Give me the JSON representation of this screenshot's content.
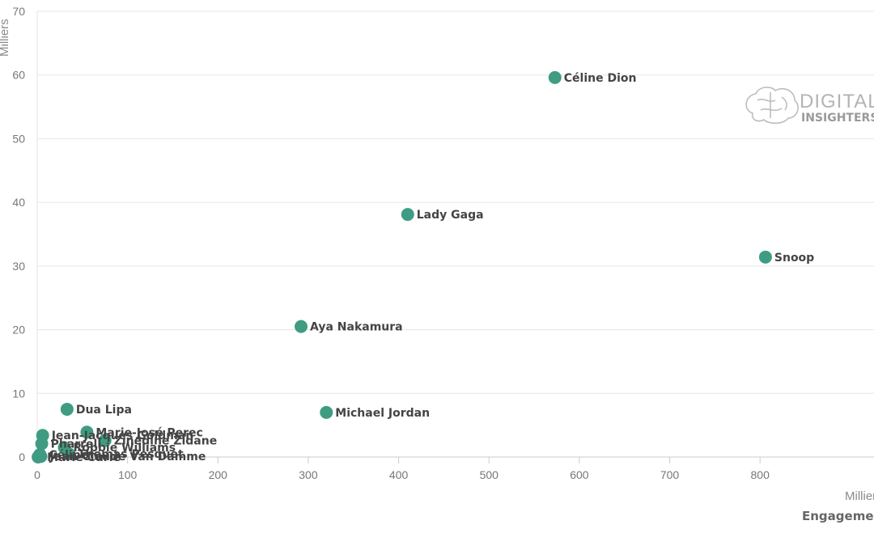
{
  "chart_data": {
    "type": "scatter",
    "x_unit": "Millier",
    "x_title": "Engagement",
    "y_unit": "Milliers",
    "xlim": [
      0,
      890
    ],
    "ylim": [
      0,
      70
    ],
    "x_ticks": [
      "0",
      "100",
      "200",
      "300",
      "400",
      "500",
      "600",
      "700",
      "800"
    ],
    "y_ticks": [
      "0",
      "10",
      "20",
      "30",
      "40",
      "50",
      "60",
      "70"
    ],
    "grid": "horizontal",
    "color": "#3f9c82",
    "points": [
      {
        "label": "Céline Dion",
        "x": 573,
        "y": 59.6
      },
      {
        "label": "Lady Gaga",
        "x": 410,
        "y": 38.1
      },
      {
        "label": "Snoop",
        "x": 806,
        "y": 31.4
      },
      {
        "label": "Aya Nakamura",
        "x": 292,
        "y": 20.5
      },
      {
        "label": "Michael Jordan",
        "x": 320,
        "y": 7.0
      },
      {
        "label": "Dua Lipa",
        "x": 33,
        "y": 7.5
      },
      {
        "label": "Marie-José Perec",
        "x": 55,
        "y": 3.9
      },
      {
        "label": "Zinedine Zidane",
        "x": 75,
        "y": 2.6
      },
      {
        "label": "Jean-Jacques Goldman",
        "x": 6,
        "y": 3.4
      },
      {
        "label": "Robbie Williams",
        "x": 30,
        "y": 1.5
      },
      {
        "label": "Thomas Pesquet",
        "x": 35,
        "y": 0.5
      },
      {
        "label": "Jean-Claude Van Damme",
        "x": 4,
        "y": 0.1
      },
      {
        "label": "Pharrell",
        "x": 5,
        "y": 2.1
      },
      {
        "label": "Céline",
        "x": 3,
        "y": 0.4
      },
      {
        "label": "Marie Curie",
        "x": 1,
        "y": 0
      }
    ]
  },
  "watermark": {
    "line1": "DIGITAL",
    "line2": "INSIGHTERS"
  }
}
